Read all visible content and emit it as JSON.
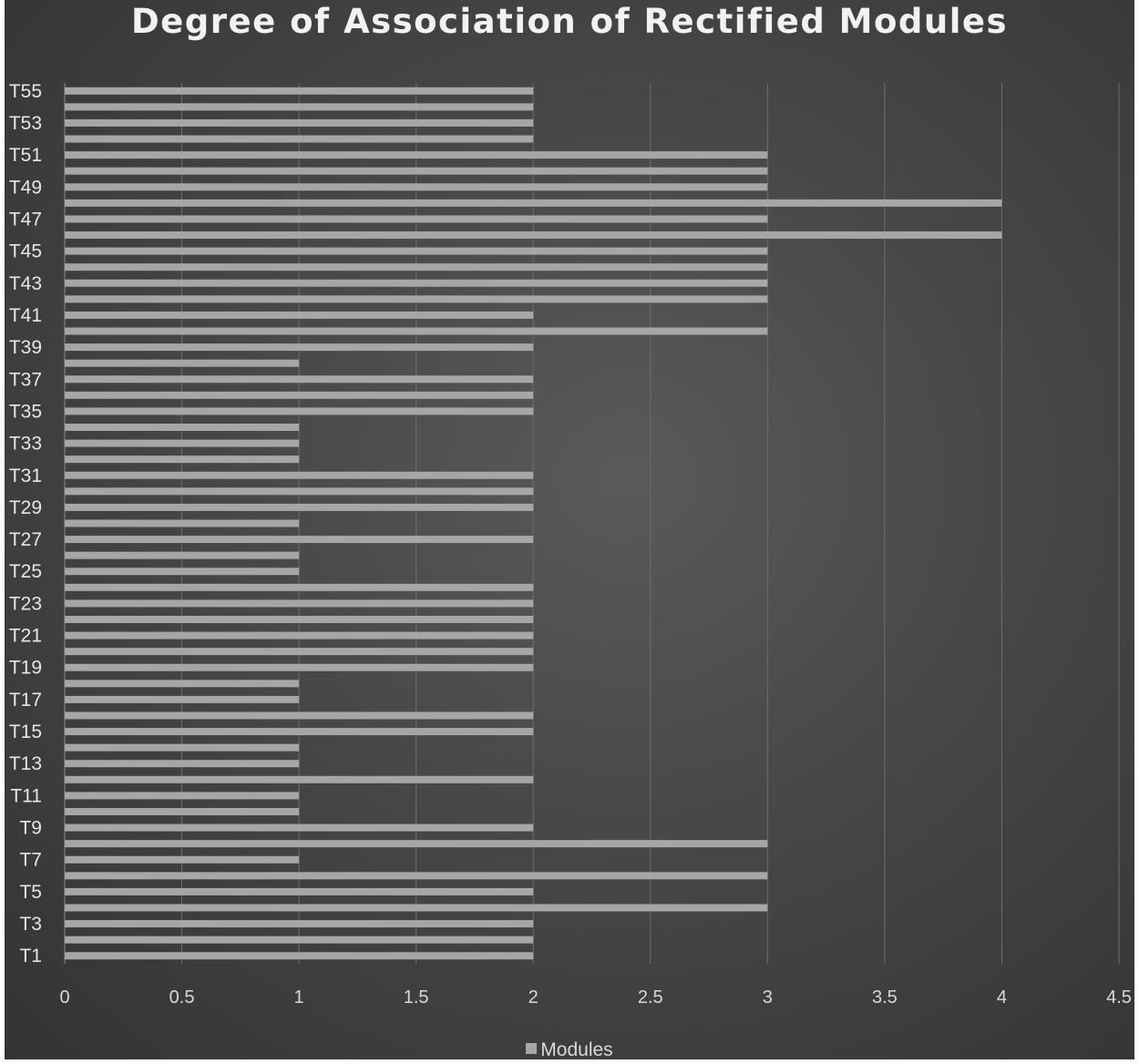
{
  "chart_data": {
    "type": "bar",
    "orientation": "horizontal",
    "title": "Degree of Association of Rectified Modules",
    "xlabel": "",
    "ylabel": "",
    "categories": [
      "T1",
      "T2",
      "T3",
      "T4",
      "T5",
      "T6",
      "T7",
      "T8",
      "T9",
      "T10",
      "T11",
      "T12",
      "T13",
      "T14",
      "T15",
      "T16",
      "T17",
      "T18",
      "T19",
      "T20",
      "T21",
      "T22",
      "T23",
      "T24",
      "T25",
      "T26",
      "T27",
      "T28",
      "T29",
      "T30",
      "T31",
      "T32",
      "T33",
      "T34",
      "T35",
      "T36",
      "T37",
      "T38",
      "T39",
      "T40",
      "T41",
      "T42",
      "T43",
      "T44",
      "T45",
      "T46",
      "T47",
      "T48",
      "T49",
      "T50",
      "T51",
      "T52",
      "T53",
      "T54",
      "T55"
    ],
    "visible_category_labels": [
      "T1",
      "T3",
      "T5",
      "T7",
      "T9",
      "T11",
      "T13",
      "T15",
      "T17",
      "T19",
      "T21",
      "T23",
      "T25",
      "T27",
      "T29",
      "T31",
      "T33",
      "T35",
      "T37",
      "T39",
      "T41",
      "T43",
      "T45",
      "T47",
      "T49",
      "T51",
      "T53",
      "T55"
    ],
    "series": [
      {
        "name": "Modules",
        "color": "#a6a6a6",
        "values": [
          2,
          2,
          2,
          3,
          2,
          3,
          1,
          3,
          2,
          1,
          1,
          2,
          1,
          1,
          2,
          2,
          1,
          1,
          2,
          2,
          2,
          2,
          2,
          2,
          1,
          1,
          2,
          1,
          2,
          2,
          2,
          1,
          1,
          1,
          2,
          2,
          2,
          1,
          2,
          3,
          2,
          3,
          3,
          3,
          3,
          4,
          3,
          4,
          3,
          3,
          3,
          2,
          2,
          2,
          2
        ]
      }
    ],
    "xlim": [
      0,
      4.5
    ],
    "x_ticks": [
      "0",
      "0.5",
      "1",
      "1.5",
      "2",
      "2.5",
      "3",
      "3.5",
      "4",
      "4.5"
    ],
    "grid": true,
    "legend": {
      "position": "bottom",
      "label": "Modules"
    },
    "colors": {
      "background": "#474747",
      "bar": "#a6a6a6",
      "gridline": "#6e6e6e",
      "text": "#e6e6e6"
    }
  }
}
